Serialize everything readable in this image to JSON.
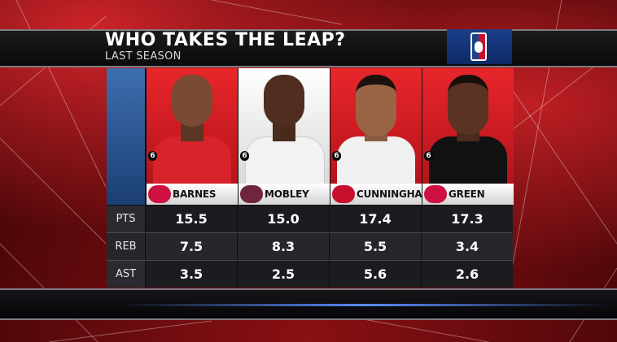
{
  "header": {
    "title": "WHO TAKES THE LEAP?",
    "subtitle": "LAST SEASON"
  },
  "logo": {
    "icon": "nba-logo-icon"
  },
  "stat_labels": [
    "PTS",
    "REB",
    "AST"
  ],
  "players": [
    {
      "name": "BARNES",
      "number": "6",
      "team_logo": "raptors-logo-icon",
      "team_color": "#ce1141",
      "photo_bg": "red",
      "stats": {
        "pts": "15.5",
        "reb": "7.5",
        "ast": "3.5"
      }
    },
    {
      "name": "MOBLEY",
      "number": "6",
      "team_logo": "cavaliers-logo-icon",
      "team_color": "#6f263d",
      "photo_bg": "white",
      "stats": {
        "pts": "15.0",
        "reb": "8.3",
        "ast": "2.5"
      }
    },
    {
      "name": "CUNNINGHAM",
      "number": "6",
      "team_logo": "pistons-logo-icon",
      "team_color": "#c8102e",
      "photo_bg": "red",
      "stats": {
        "pts": "17.4",
        "reb": "5.5",
        "ast": "5.6"
      }
    },
    {
      "name": "GREEN",
      "number": "6",
      "team_logo": "rockets-logo-icon",
      "team_color": "#ce1141",
      "photo_bg": "red",
      "stats": {
        "pts": "17.3",
        "reb": "3.4",
        "ast": "2.6"
      }
    }
  ]
}
